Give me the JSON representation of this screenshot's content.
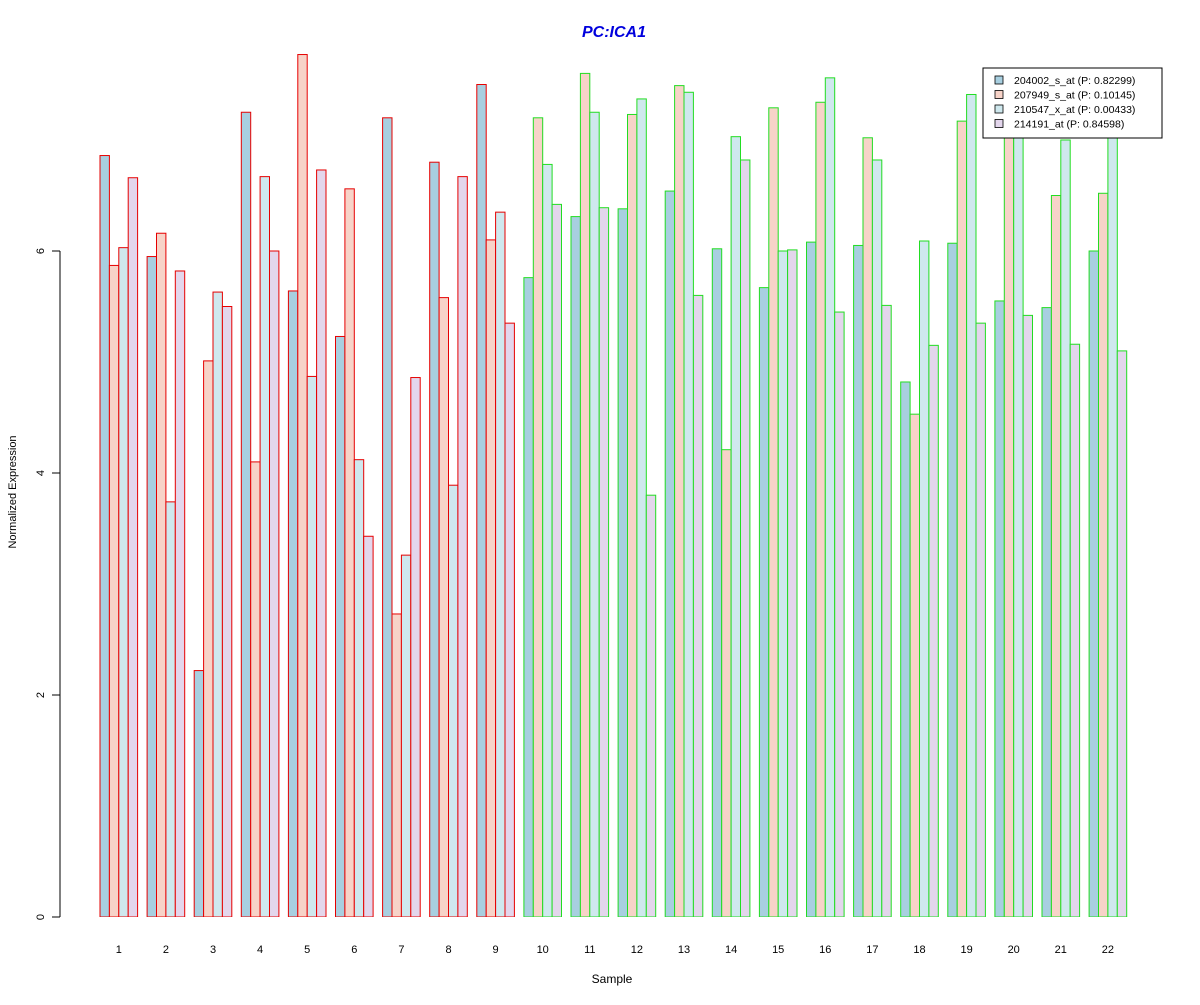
{
  "chart_data": {
    "type": "bar",
    "title": "PC:ICA1",
    "xlabel": "Sample",
    "ylabel": "Normalized Expression",
    "ylim": [
      0,
      7.7
    ],
    "yticks": [
      0,
      2,
      4,
      6
    ],
    "grid": false,
    "legend_position": "top-right",
    "categories": [
      "1",
      "2",
      "3",
      "4",
      "5",
      "6",
      "7",
      "8",
      "9",
      "10",
      "11",
      "12",
      "13",
      "14",
      "15",
      "16",
      "17",
      "18",
      "19",
      "20",
      "21",
      "22"
    ],
    "sample_group_colors": [
      "#e60000",
      "#e60000",
      "#e60000",
      "#e60000",
      "#e60000",
      "#e60000",
      "#e60000",
      "#e60000",
      "#e60000",
      "#22dd22",
      "#22dd22",
      "#22dd22",
      "#22dd22",
      "#22dd22",
      "#22dd22",
      "#22dd22",
      "#22dd22",
      "#22dd22",
      "#22dd22",
      "#22dd22",
      "#22dd22",
      "#22dd22"
    ],
    "series": [
      {
        "name": "204002_s_at (P: 0.82299)",
        "fill": "#a8cfe0",
        "values": [
          6.86,
          5.95,
          2.22,
          7.25,
          5.64,
          5.23,
          7.2,
          6.8,
          7.5,
          5.76,
          6.31,
          6.38,
          6.54,
          6.02,
          5.67,
          6.08,
          6.05,
          4.82,
          6.07,
          5.55,
          5.49,
          6.0
        ]
      },
      {
        "name": "207949_s_at (P: 0.10145)",
        "fill": "#f7d3c8",
        "values": [
          5.87,
          6.16,
          5.01,
          4.1,
          7.77,
          6.56,
          2.73,
          5.58,
          6.1,
          7.2,
          7.6,
          7.23,
          7.49,
          4.21,
          7.29,
          7.34,
          7.02,
          4.53,
          7.17,
          7.1,
          6.5,
          6.52
        ]
      },
      {
        "name": "210547_x_at (P: 0.00433)",
        "fill": "#cfe8ee",
        "values": [
          6.03,
          3.74,
          5.63,
          6.67,
          4.87,
          4.12,
          3.26,
          3.89,
          6.35,
          6.78,
          7.25,
          7.37,
          7.43,
          7.03,
          6.0,
          7.56,
          6.82,
          6.09,
          7.41,
          7.1,
          7.0,
          7.1
        ]
      },
      {
        "name": "214191_at (P: 0.84598)",
        "fill": "#e3d6ec",
        "values": [
          6.66,
          5.82,
          5.5,
          6.0,
          6.73,
          3.43,
          4.86,
          6.67,
          5.35,
          6.42,
          6.39,
          3.8,
          5.6,
          6.82,
          6.01,
          5.45,
          5.51,
          5.15,
          5.35,
          5.42,
          5.16,
          5.1
        ]
      }
    ]
  }
}
